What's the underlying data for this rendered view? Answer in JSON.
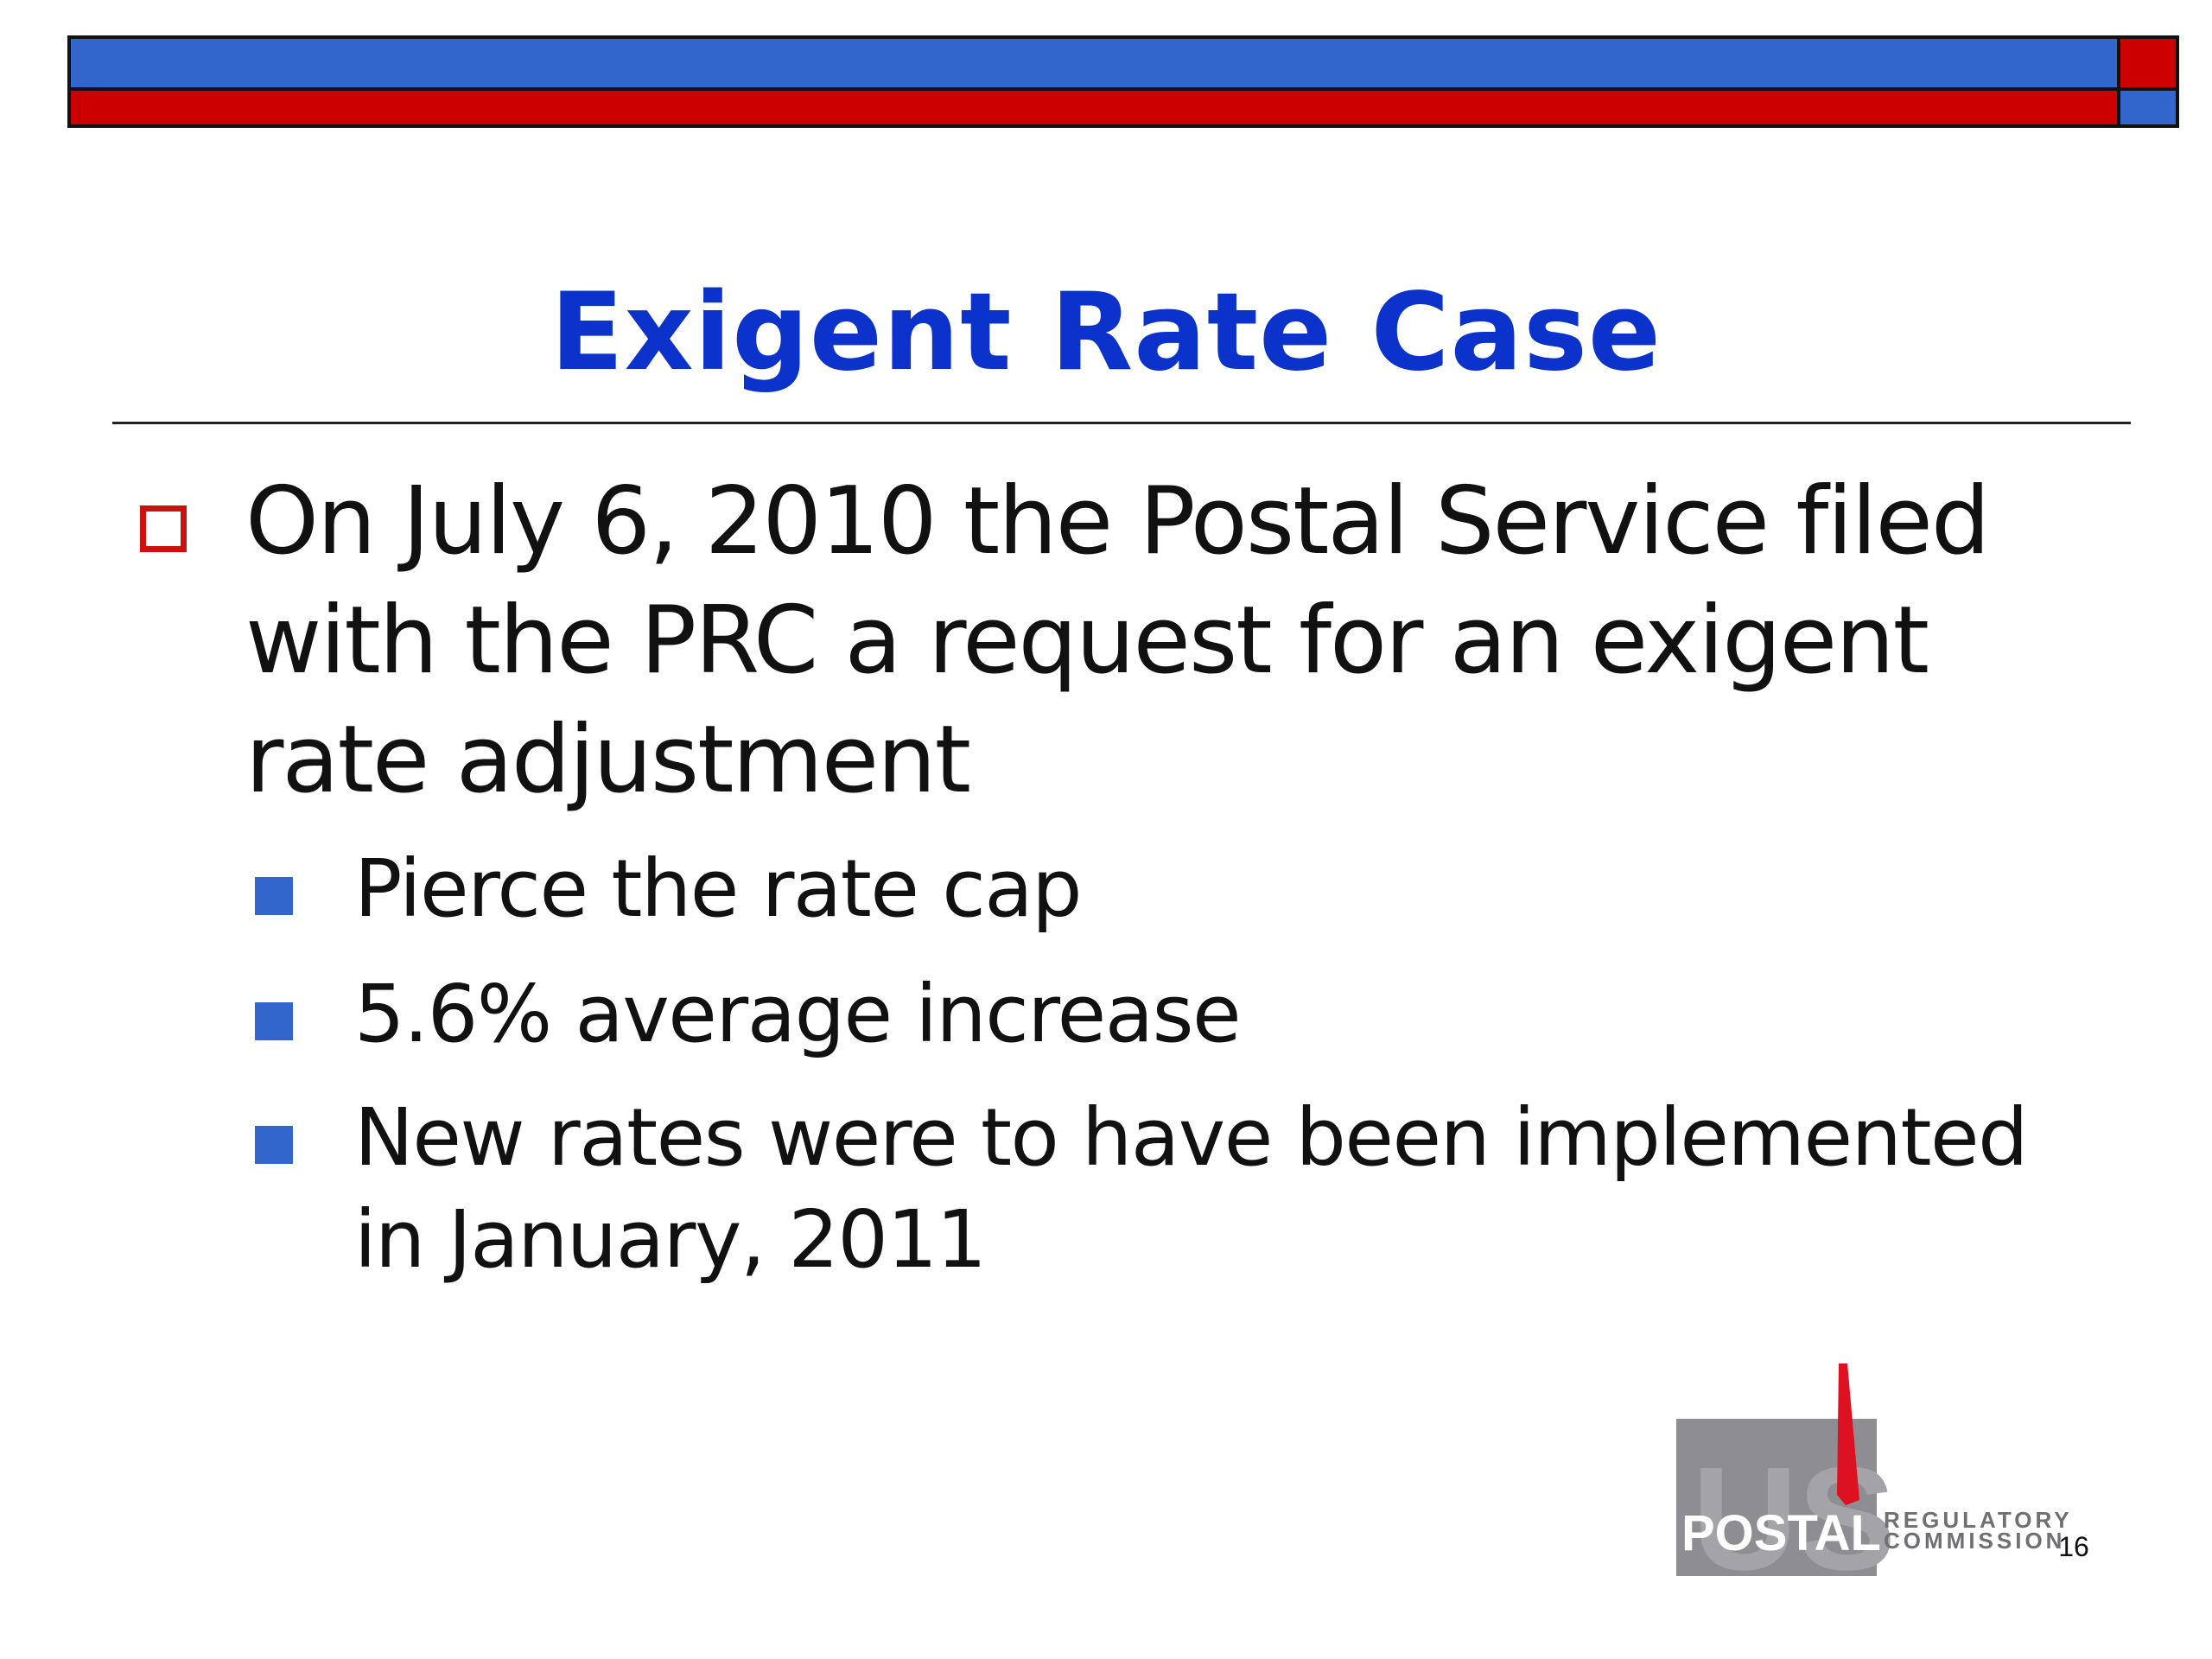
{
  "title": "Exigent Rate Case",
  "bullets": [
    {
      "text": "On July 6, 2010 the Postal Service filed with the PRC a request for an exigent rate adjustment",
      "sub_bullets": [
        "Pierce the rate cap",
        "5.6% average increase",
        "New rates were to have been implemented in January, 2011"
      ]
    }
  ],
  "logo": {
    "word_main": "POSTAL",
    "word_line1": "REGULATORY",
    "word_line2": "COMMISSION",
    "watermark": "US"
  },
  "page_number": "16",
  "colors": {
    "title": "#0b33cc",
    "banner_blue": "#3366cc",
    "banner_red": "#cc0000",
    "l1_marker": "#cc1111",
    "l2_marker": "#3366cc"
  }
}
